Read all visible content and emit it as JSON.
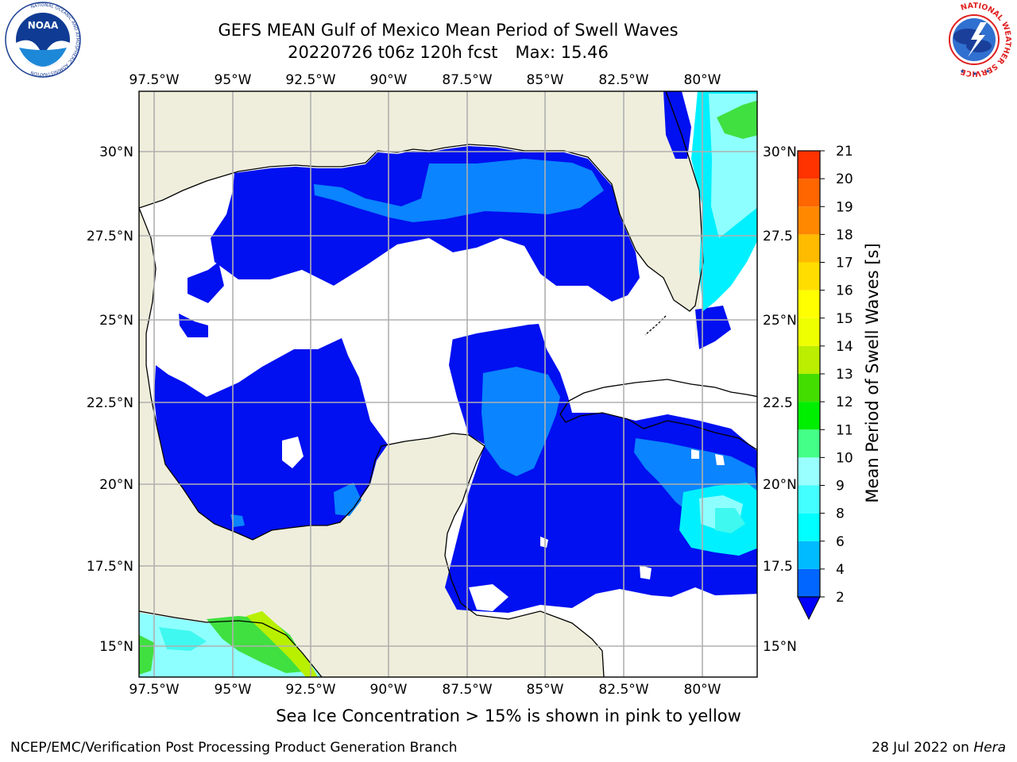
{
  "header": {
    "title": "GEFS MEAN Gulf of Mexico Mean Period of Swell Waves",
    "subtitle_run": "20220726 t06z 120h fcst",
    "subtitle_max": "Max: 15.46"
  },
  "logos": {
    "left": {
      "name": "NOAA",
      "ring_text": "NATIONAL OCEANIC AND ATMOSPHERIC ADMINISTRATION",
      "ring_text_bottom": "U.S. DEPARTMENT OF COMMERCE"
    },
    "right": {
      "name": "National Weather Service",
      "ring_text": "NATIONAL WEATHER SERVICE"
    }
  },
  "map": {
    "lon_labels": [
      "97.5°W",
      "95°W",
      "92.5°W",
      "90°W",
      "87.5°W",
      "85°W",
      "82.5°W",
      "80°W"
    ],
    "lat_labels_left": [
      "30°N",
      "27.5°N",
      "25°N",
      "22.5°N",
      "20°N",
      "17.5°N",
      "15°N"
    ],
    "lat_labels_right": [
      "30°N",
      "27.5",
      "25°N",
      "22.5",
      "20°N",
      "17.5",
      "15°N"
    ],
    "colors": {
      "land": "#efeedc",
      "ocean_missing": "#ffffff",
      "grid": "#b0b0b0",
      "coast": "#000000",
      "blue": "#0010f0",
      "azure": "#0a84ff",
      "cyan": "#00f0ff",
      "lightcyan": "#8effff",
      "aqua": "#3ff8f0",
      "green": "#40e040",
      "lime": "#b8f000"
    }
  },
  "colorbar": {
    "label": "Mean Period of Swell Waves [s]",
    "ticks": [
      "2",
      "4",
      "6",
      "8",
      "9",
      "10",
      "11",
      "12",
      "13",
      "14",
      "15",
      "16",
      "17",
      "18",
      "19",
      "20",
      "21"
    ],
    "colors": [
      "#0066ff",
      "#00bbff",
      "#00ffff",
      "#44ffff",
      "#99ffff",
      "#44ff88",
      "#00ee00",
      "#44dd00",
      "#bbee00",
      "#eeff00",
      "#ffff00",
      "#ffdd00",
      "#ffbb00",
      "#ff8800",
      "#ff6600",
      "#ff3300",
      "#ff0000"
    ],
    "under_color": "#0000ff"
  },
  "footer": {
    "note": "Sea Ice Concentration > 15% is shown in pink to yellow",
    "credit": "NCEP/EMC/Verification Post Processing Product Generation Branch",
    "date": "28 Jul 2022 on",
    "machine": "Hera"
  }
}
